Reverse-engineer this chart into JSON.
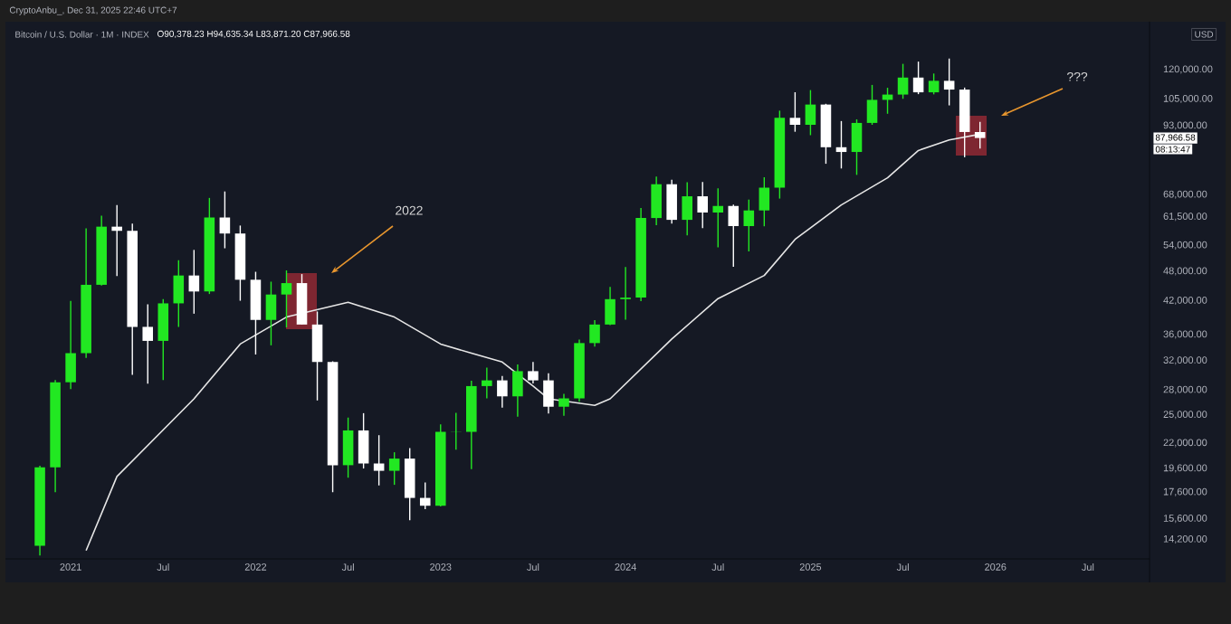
{
  "chart_data": {
    "type": "candlestick",
    "title": "Bitcoin / U.S. Dollar · 1M · INDEX",
    "subtitle": "O90,378.23 H94,635.34 L83,871.20 C87,966.58",
    "annotations": [
      "CryptoAnbu_, Dec 31, 2025 22:46 UTC+7",
      "USD",
      "2022",
      "???",
      "87,966.58",
      "08:13:47"
    ],
    "log": true,
    "xlim": [
      "2020-09",
      "2026-11"
    ],
    "ylim": [
      13000,
      148000
    ],
    "xticks": [
      {
        "value": "2021-01",
        "label": "2021"
      },
      {
        "value": "2021-07",
        "label": "Jul"
      },
      {
        "value": "2022-01",
        "label": "2022"
      },
      {
        "value": "2022-07",
        "label": "Jul"
      },
      {
        "value": "2023-01",
        "label": "2023"
      },
      {
        "value": "2023-07",
        "label": "Jul"
      },
      {
        "value": "2024-01",
        "label": "2024"
      },
      {
        "value": "2024-07",
        "label": "Jul"
      },
      {
        "value": "2025-01",
        "label": "2025"
      },
      {
        "value": "2025-07",
        "label": "Jul"
      },
      {
        "value": "2026-01",
        "label": "2026"
      },
      {
        "value": "2026-07",
        "label": "Jul"
      }
    ],
    "yticks": [
      {
        "value": 14200,
        "label": "14,200.00"
      },
      {
        "value": 15600,
        "label": "15,600.00"
      },
      {
        "value": 17600,
        "label": "17,600.00"
      },
      {
        "value": 19600,
        "label": "19,600.00"
      },
      {
        "value": 22000,
        "label": "22,000.00"
      },
      {
        "value": 25000,
        "label": "25,000.00"
      },
      {
        "value": 28000,
        "label": "28,000.00"
      },
      {
        "value": 32000,
        "label": "32,000.00"
      },
      {
        "value": 36000,
        "label": "36,000.00"
      },
      {
        "value": 42000,
        "label": "42,000.00"
      },
      {
        "value": 48000,
        "label": "48,000.00"
      },
      {
        "value": 54000,
        "label": "54,000.00"
      },
      {
        "value": 61500,
        "label": "61,500.00"
      },
      {
        "value": 68000,
        "label": "68,000.00"
      },
      {
        "value": 93000,
        "label": "93,000.00"
      },
      {
        "value": 105000,
        "label": "105,000.00"
      },
      {
        "value": 120000,
        "label": "120,000.00"
      }
    ],
    "x": [
      "2020-11",
      "2020-12",
      "2021-01",
      "2021-02",
      "2021-03",
      "2021-04",
      "2021-05",
      "2021-06",
      "2021-07",
      "2021-08",
      "2021-09",
      "2021-10",
      "2021-11",
      "2021-12",
      "2022-01",
      "2022-02",
      "2022-03",
      "2022-04",
      "2022-05",
      "2022-06",
      "2022-07",
      "2022-08",
      "2022-09",
      "2022-10",
      "2022-11",
      "2022-12",
      "2023-01",
      "2023-02",
      "2023-03",
      "2023-04",
      "2023-05",
      "2023-06",
      "2023-07",
      "2023-08",
      "2023-09",
      "2023-10",
      "2023-11",
      "2023-12",
      "2024-01",
      "2024-02",
      "2024-03",
      "2024-04",
      "2024-05",
      "2024-06",
      "2024-07",
      "2024-08",
      "2024-09",
      "2024-10",
      "2024-11",
      "2024-12",
      "2025-01",
      "2025-02",
      "2025-03",
      "2025-04",
      "2025-05",
      "2025-06",
      "2025-07",
      "2025-08",
      "2025-09",
      "2025-10",
      "2025-11",
      "2025-12"
    ],
    "ohlc": [
      [
        13800,
        19850,
        13200,
        19700
      ],
      [
        19700,
        29300,
        17600,
        29000
      ],
      [
        29000,
        41950,
        28100,
        33100
      ],
      [
        33100,
        58350,
        32400,
        45150
      ],
      [
        45150,
        61800,
        45000,
        58800
      ],
      [
        58800,
        64850,
        47000,
        57700
      ],
      [
        57700,
        59600,
        30000,
        37300
      ],
      [
        37300,
        41300,
        28800,
        35000
      ],
      [
        35000,
        42300,
        29300,
        41500
      ],
      [
        41500,
        50500,
        37300,
        47100
      ],
      [
        47100,
        52900,
        39600,
        43800
      ],
      [
        43800,
        67000,
        43300,
        61300
      ],
      [
        61300,
        69000,
        53300,
        57000
      ],
      [
        57000,
        59100,
        42000,
        46200
      ],
      [
        46200,
        47900,
        32900,
        38500
      ],
      [
        38500,
        45800,
        34300,
        43200
      ],
      [
        43200,
        48200,
        37200,
        45500
      ],
      [
        45500,
        47400,
        37700,
        37700
      ],
      [
        37700,
        40000,
        26700,
        31800
      ],
      [
        31800,
        31900,
        17600,
        19900
      ],
      [
        19900,
        24700,
        18800,
        23300
      ],
      [
        23300,
        25200,
        19600,
        20050
      ],
      [
        20050,
        22800,
        18150,
        19400
      ],
      [
        19400,
        21100,
        18200,
        20500
      ],
      [
        20500,
        21500,
        15500,
        17150
      ],
      [
        17150,
        18400,
        16300,
        16550
      ],
      [
        16550,
        23950,
        16500,
        23150
      ],
      [
        23150,
        25250,
        21350,
        23130
      ],
      [
        23150,
        29200,
        19550,
        28500
      ],
      [
        28500,
        31000,
        26950,
        29250
      ],
      [
        29250,
        29850,
        25850,
        27200
      ],
      [
        27200,
        31450,
        24800,
        30500
      ],
      [
        30500,
        31800,
        28850,
        29250
      ],
      [
        29250,
        30200,
        25150,
        25950
      ],
      [
        25950,
        27500,
        24900,
        26950
      ],
      [
        26950,
        35200,
        26550,
        34650
      ],
      [
        34650,
        38450,
        34100,
        37700
      ],
      [
        37700,
        44700,
        37600,
        42300
      ],
      [
        42300,
        48950,
        38550,
        42600
      ],
      [
        42600,
        64000,
        41900,
        61150
      ],
      [
        61150,
        73800,
        59200,
        71300
      ],
      [
        71300,
        72800,
        59600,
        60650
      ],
      [
        60650,
        71950,
        56550,
        67500
      ],
      [
        67500,
        72000,
        58400,
        62700
      ],
      [
        62700,
        70000,
        53500,
        64600
      ],
      [
        64600,
        65000,
        49000,
        58950
      ],
      [
        58950,
        66500,
        52550,
        63300
      ],
      [
        63300,
        73600,
        58900,
        70200
      ],
      [
        70200,
        99600,
        66800,
        96400
      ],
      [
        96400,
        108300,
        90500,
        93400
      ],
      [
        93400,
        109350,
        89100,
        102400
      ],
      [
        102400,
        102750,
        78250,
        84350
      ],
      [
        84350,
        95000,
        76600,
        82550
      ],
      [
        82550,
        95750,
        74400,
        94200
      ],
      [
        94200,
        111950,
        93400,
        104600
      ],
      [
        104600,
        110500,
        98200,
        107150
      ],
      [
        107150,
        123200,
        105100,
        115750
      ],
      [
        115750,
        124450,
        107350,
        108250
      ],
      [
        108250,
        117900,
        107250,
        114050
      ],
      [
        114050,
        126200,
        102000,
        109600
      ],
      [
        109600,
        110600,
        80600,
        90400
      ],
      [
        90378.23,
        94635.34,
        83871.2,
        87966.58
      ]
    ],
    "colors": [
      "#22e822",
      "#22e822",
      "#22e822",
      "#22e822",
      "#22e822",
      "#ffffff",
      "#ffffff",
      "#ffffff",
      "#22e822",
      "#22e822",
      "#ffffff",
      "#22e822",
      "#ffffff",
      "#ffffff",
      "#ffffff",
      "#22e822",
      "#22e822",
      "#ffffff",
      "#ffffff",
      "#ffffff",
      "#22e822",
      "#ffffff",
      "#ffffff",
      "#22e822",
      "#ffffff",
      "#ffffff",
      "#22e822",
      "#22e822",
      "#22e822",
      "#22e822",
      "#ffffff",
      "#22e822",
      "#ffffff",
      "#ffffff",
      "#22e822",
      "#22e822",
      "#22e822",
      "#22e822",
      "#22e822",
      "#22e822",
      "#22e822",
      "#ffffff",
      "#22e822",
      "#ffffff",
      "#22e822",
      "#ffffff",
      "#22e822",
      "#22e822",
      "#22e822",
      "#ffffff",
      "#22e822",
      "#ffffff",
      "#ffffff",
      "#22e822",
      "#22e822",
      "#22e822",
      "#22e822",
      "#ffffff",
      "#22e822",
      "#ffffff",
      "#ffffff",
      "#ffffff"
    ],
    "series": [
      {
        "type": "line",
        "color": "#e6e6e6",
        "x": [
          "2021-02",
          "2021-04",
          "2021-09",
          "2021-12",
          "2022-03",
          "2022-07",
          "2022-10",
          "2023-01",
          "2023-03",
          "2023-05",
          "2023-07",
          "2023-08",
          "2023-11",
          "2023-12",
          "2024-04",
          "2024-07",
          "2024-10",
          "2024-12",
          "2025-03",
          "2025-06",
          "2025-08",
          "2025-10",
          "2025-12"
        ],
        "values": [
          13500,
          18900,
          26900,
          34500,
          39000,
          41700,
          39000,
          34500,
          33100,
          31800,
          28500,
          26900,
          26100,
          26900,
          35300,
          42400,
          47100,
          55500,
          64900,
          73400,
          83100,
          87200,
          89500
        ]
      }
    ]
  }
}
